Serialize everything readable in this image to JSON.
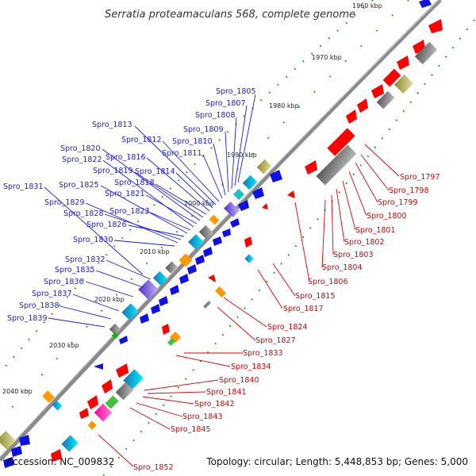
{
  "title": "Serratia proteamaculans 568, complete genome",
  "footer": {
    "accession": "Accession: NC_009832",
    "topology": "Topology: circular; Length: 5,448,853 bp; Genes: 5,000"
  },
  "kbp_ticks": [
    "1960 kbp",
    "1970 kbp",
    "1980 kbp",
    "1990 kbp",
    "2000 kbp",
    "2010 kbp",
    "2020 kbp",
    "2030 kbp",
    "2040 kbp"
  ],
  "forward_labels": [
    "Spro_1805",
    "Spro_1807",
    "Spro_1808",
    "Spro_1809",
    "Spro_1810",
    "Spro_1811",
    "Spro_1812",
    "Spro_1813",
    "Spro_1814",
    "Spro_1816",
    "Spro_1818",
    "Spro_1819",
    "Spro_1820",
    "Spro_1821",
    "Spro_1822",
    "Spro_1823",
    "Spro_1825",
    "Spro_1826",
    "Spro_1828",
    "Spro_1829",
    "Spro_1830",
    "Spro_1831",
    "Spro_1832",
    "Spro_1835",
    "Spro_1836",
    "Spro_1837",
    "Spro_1838",
    "Spro_1839"
  ],
  "reverse_labels": [
    "Spro_1797",
    "Spro_1798",
    "Spro_1799",
    "Spro_1800",
    "Spro_1801",
    "Spro_1802",
    "Spro_1803",
    "Spro_1804",
    "Spro_1806",
    "Spro_1815",
    "Spro_1817",
    "Spro_1824",
    "Spro_1827",
    "Spro_1833",
    "Spro_1834",
    "Spro_1840",
    "Spro_1841",
    "Spro_1842",
    "Spro_1843",
    "Spro_1845",
    "Spro_1852"
  ],
  "colors": {
    "forward_gene": "#1010e0",
    "reverse_gene": "#ff0000",
    "backbone": "#888888",
    "tick": "#1a8a1a"
  }
}
